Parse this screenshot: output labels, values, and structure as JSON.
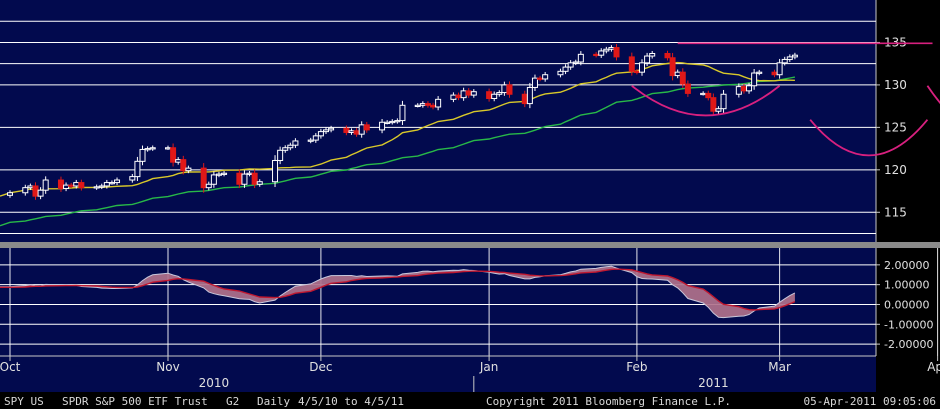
{
  "chart_data": [
    {
      "type": "candlestick",
      "title": "",
      "xlabel": "",
      "ylabel": "",
      "ylim": [
        111.5,
        140
      ],
      "yticks": [
        115,
        120,
        125,
        130,
        135
      ],
      "ytick_labels": [
        "115",
        "120",
        "125",
        "130",
        "135"
      ],
      "grid": true,
      "x_start": "2010-10-01",
      "month_ticks": [
        {
          "label": "Oct",
          "date": "2010-10-01"
        },
        {
          "label": "Nov",
          "date": "2010-11-01"
        },
        {
          "label": "Dec",
          "date": "2010-12-01"
        },
        {
          "label": "Jan",
          "date": "2011-01-03"
        },
        {
          "label": "Feb",
          "date": "2011-02-01"
        },
        {
          "label": "Mar",
          "date": "2011-03-01"
        },
        {
          "label": "Apr",
          "date": "2011-04-01"
        }
      ],
      "year_labels": [
        {
          "label": "2010",
          "date": "2010-11-10"
        },
        {
          "label": "2011",
          "date": "2011-02-16"
        }
      ],
      "year_divider_date": "2010-12-31",
      "close_series": [
        117.3,
        117.9,
        118.1,
        116.9,
        117.6,
        118.8,
        117.8,
        118.2,
        118.1,
        118.5,
        117.9,
        118.0,
        118.1,
        118.5,
        118.5,
        118.8,
        119.2,
        121.0,
        122.4,
        122.5,
        122.6,
        122.6,
        120.9,
        121.2,
        119.9,
        120.2,
        117.9,
        118.3,
        119.4,
        119.5,
        119.6,
        118.3,
        119.5,
        119.6,
        118.3,
        118.6,
        121.1,
        122.3,
        122.6,
        122.9,
        123.4,
        123.5,
        124.0,
        124.5,
        124.7,
        124.9,
        124.4,
        124.6,
        124.2,
        125.3,
        124.7,
        125.6,
        125.6,
        125.7,
        125.8,
        127.6,
        127.6,
        127.8,
        127.6,
        127.4,
        128.3,
        128.8,
        128.5,
        129.3,
        128.8,
        129.2,
        128.4,
        128.9,
        129.1,
        130.0,
        128.9,
        127.8,
        129.7,
        130.8,
        130.7,
        131.2,
        131.6,
        132.1,
        132.6,
        132.7,
        133.6,
        133.5,
        134.0,
        134.2,
        134.4,
        133.3,
        131.6,
        131.5,
        132.6,
        133.4,
        133.7,
        133.2,
        131.1,
        131.5,
        130.1,
        129.0,
        129.0,
        128.5,
        126.9,
        127.2,
        128.9,
        129.8,
        129.3,
        129.9,
        131.4,
        131.5,
        131.2,
        132.6,
        133.0,
        133.3,
        133.5
      ],
      "series": [
        {
          "name": "",
          "role": "price candles",
          "color": "#ffffff",
          "down_color": "#e01818"
        },
        {
          "name": "",
          "role": "short moving average",
          "color": "#d8c82a"
        },
        {
          "name": "",
          "role": "long moving average",
          "color": "#28b848"
        }
      ],
      "annotations": {
        "color": "#d8207f",
        "resistance_line": {
          "y": 134.9,
          "from": "2011-02-09",
          "to": "2011-03-31"
        },
        "arcs": [
          {
            "from": "2011-01-31",
            "to": "2011-03-01",
            "low": 126.4,
            "high": 129.9
          },
          {
            "from": "2011-03-07",
            "to": "2011-03-30",
            "low": 121.7,
            "high": 125.9
          },
          {
            "from": "2011-03-30",
            "to": "2011-04-25",
            "low": 124.1,
            "high": 129.9
          }
        ]
      }
    },
    {
      "type": "area",
      "title": "",
      "ylim": [
        -2.6,
        2.85
      ],
      "yticks": [
        2,
        1,
        0,
        -1,
        -2
      ],
      "ytick_labels": [
        "2.00000",
        "1.00000",
        "0.00000",
        "-1.00000",
        "-2.00000"
      ],
      "grid": true,
      "series": [
        {
          "name": "",
          "role": "oscillator",
          "color": "#c8c8dc"
        },
        {
          "name": "",
          "role": "signal",
          "color": "#c01830"
        }
      ]
    }
  ],
  "status_bar": {
    "ticker": "SPY  US",
    "security": "SPDR S&P 500 ETF Trust",
    "template": "G2",
    "period": "Daily",
    "range": "4/5/10 to 4/5/11",
    "copyright": "Copyright 2011 Bloomberg Finance L.P.",
    "timestamp": "05-Apr-2011 09:05:06"
  }
}
